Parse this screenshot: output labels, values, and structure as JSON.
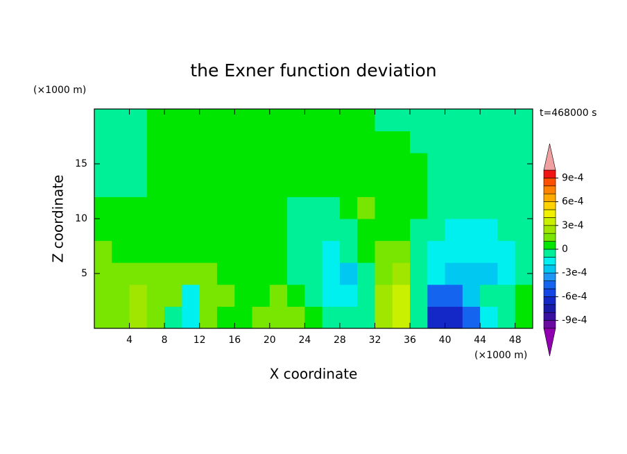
{
  "chart_data": {
    "type": "contour",
    "title": "the Exner function deviation",
    "x_label": "X coordinate",
    "y_label": "Z coordinate",
    "x_unit": "(×1000 m)",
    "y_unit": "(×1000 m)",
    "time_label": "t=468000 s",
    "x": [
      1,
      3,
      5,
      7,
      9,
      11,
      13,
      15,
      17,
      19,
      21,
      23,
      25,
      27,
      29,
      31,
      33,
      35,
      37,
      39,
      41,
      43,
      45,
      47,
      49
    ],
    "y": [
      1,
      3,
      5,
      7,
      9,
      11,
      13,
      15,
      17,
      19
    ],
    "values": [
      [
        0.00015,
        0.00015,
        0.00025,
        0.00015,
        -5e-05,
        -0.00015,
        0.00015,
        5e-05,
        5e-05,
        0.00015,
        0.00015,
        0.00015,
        5e-05,
        -5e-05,
        -5e-05,
        -5e-05,
        0.00025,
        0.00035,
        -5e-05,
        -0.00065,
        -0.00065,
        -0.00045,
        -0.00015,
        -5e-05,
        5e-05
      ],
      [
        0.00015,
        0.00015,
        0.00025,
        0.00015,
        0.00015,
        -0.00015,
        0.00015,
        0.00015,
        5e-05,
        5e-05,
        0.00015,
        5e-05,
        -5e-05,
        -0.00015,
        -0.00015,
        -5e-05,
        0.00025,
        0.00035,
        -5e-05,
        -0.00045,
        -0.00045,
        -0.00025,
        -5e-05,
        -5e-05,
        5e-05
      ],
      [
        0.00015,
        0.00015,
        0.00015,
        0.00015,
        0.00015,
        0.00015,
        0.00015,
        5e-05,
        5e-05,
        5e-05,
        5e-05,
        -5e-05,
        -5e-05,
        -0.00015,
        -0.00025,
        -5e-05,
        0.00015,
        0.00025,
        -5e-05,
        -0.00015,
        -0.00025,
        -0.00025,
        -0.00025,
        -0.00015,
        -5e-05
      ],
      [
        0.00015,
        5e-05,
        5e-05,
        5e-05,
        5e-05,
        5e-05,
        5e-05,
        5e-05,
        5e-05,
        5e-05,
        5e-05,
        -5e-05,
        -5e-05,
        -0.00015,
        -5e-05,
        5e-05,
        0.00015,
        0.00015,
        -5e-05,
        -0.00015,
        -0.00015,
        -0.00015,
        -0.00015,
        -0.00015,
        -5e-05
      ],
      [
        5e-05,
        5e-05,
        5e-05,
        5e-05,
        5e-05,
        5e-05,
        5e-05,
        5e-05,
        5e-05,
        5e-05,
        5e-05,
        -5e-05,
        -5e-05,
        -5e-05,
        -5e-05,
        5e-05,
        5e-05,
        5e-05,
        -5e-05,
        -5e-05,
        -0.00015,
        -0.00015,
        -0.00015,
        -5e-05,
        -5e-05
      ],
      [
        5e-05,
        5e-05,
        5e-05,
        5e-05,
        5e-05,
        5e-05,
        5e-05,
        5e-05,
        5e-05,
        5e-05,
        5e-05,
        -5e-05,
        -5e-05,
        -5e-05,
        5e-05,
        0.00015,
        5e-05,
        5e-05,
        5e-05,
        -5e-05,
        -5e-05,
        -5e-05,
        -5e-05,
        -5e-05,
        -5e-05
      ],
      [
        -5e-05,
        -5e-05,
        -5e-05,
        5e-05,
        5e-05,
        5e-05,
        5e-05,
        5e-05,
        5e-05,
        5e-05,
        5e-05,
        5e-05,
        5e-05,
        5e-05,
        5e-05,
        5e-05,
        5e-05,
        5e-05,
        5e-05,
        -5e-05,
        -5e-05,
        -5e-05,
        -5e-05,
        -5e-05,
        -5e-05
      ],
      [
        -5e-05,
        -5e-05,
        -5e-05,
        5e-05,
        5e-05,
        5e-05,
        5e-05,
        5e-05,
        5e-05,
        5e-05,
        5e-05,
        5e-05,
        5e-05,
        5e-05,
        5e-05,
        5e-05,
        5e-05,
        5e-05,
        5e-05,
        -5e-05,
        -5e-05,
        -5e-05,
        -5e-05,
        -5e-05,
        -5e-05
      ],
      [
        -5e-05,
        -5e-05,
        -5e-05,
        5e-05,
        5e-05,
        5e-05,
        5e-05,
        5e-05,
        5e-05,
        5e-05,
        5e-05,
        5e-05,
        5e-05,
        5e-05,
        5e-05,
        5e-05,
        5e-05,
        5e-05,
        -5e-05,
        -5e-05,
        -5e-05,
        -5e-05,
        -5e-05,
        -5e-05,
        -5e-05
      ],
      [
        -5e-05,
        -5e-05,
        -5e-05,
        5e-05,
        5e-05,
        5e-05,
        5e-05,
        5e-05,
        5e-05,
        5e-05,
        5e-05,
        5e-05,
        5e-05,
        5e-05,
        5e-05,
        5e-05,
        -5e-05,
        -5e-05,
        -5e-05,
        -5e-05,
        -5e-05,
        -5e-05,
        -5e-05,
        -5e-05,
        -5e-05
      ]
    ],
    "xlim": [
      0,
      50
    ],
    "ylim": [
      0,
      20
    ],
    "xticks": [
      4,
      8,
      12,
      16,
      20,
      24,
      28,
      32,
      36,
      40,
      44,
      48
    ],
    "yticks": [
      5,
      10,
      15
    ],
    "levels": [
      -0.001,
      -0.0009,
      -0.0008,
      -0.0007,
      -0.0006,
      -0.0005,
      -0.0004,
      -0.0003,
      -0.0002,
      -0.0001,
      0,
      0.0001,
      0.0002,
      0.0003,
      0.0004,
      0.0005,
      0.0006,
      0.0007,
      0.0008,
      0.0009,
      0.001
    ],
    "colors": [
      "#6a0aa0",
      "#3a10a0",
      "#1a1aa8",
      "#1428c8",
      "#1446e6",
      "#1464f0",
      "#1e96f5",
      "#00c8f0",
      "#00f0f0",
      "#00f098",
      "#00e600",
      "#78e600",
      "#a0e600",
      "#c8f000",
      "#f0f000",
      "#ffd200",
      "#ffaa00",
      "#ff8200",
      "#ff5000",
      "#f01414"
    ],
    "extend_colors": {
      "below": "#9000b0",
      "above": "#f0a0a0"
    },
    "colorbar_ticks": [
      {
        "value": -0.0009,
        "label": "-9e-4"
      },
      {
        "value": -0.0006,
        "label": "-6e-4"
      },
      {
        "value": -0.0003,
        "label": "-3e-4"
      },
      0,
      {
        "value": 0.0003,
        "label": "3e-4"
      },
      {
        "value": 0.0006,
        "label": "6e-4"
      },
      {
        "value": 0.0009,
        "label": "9e-4"
      }
    ]
  }
}
